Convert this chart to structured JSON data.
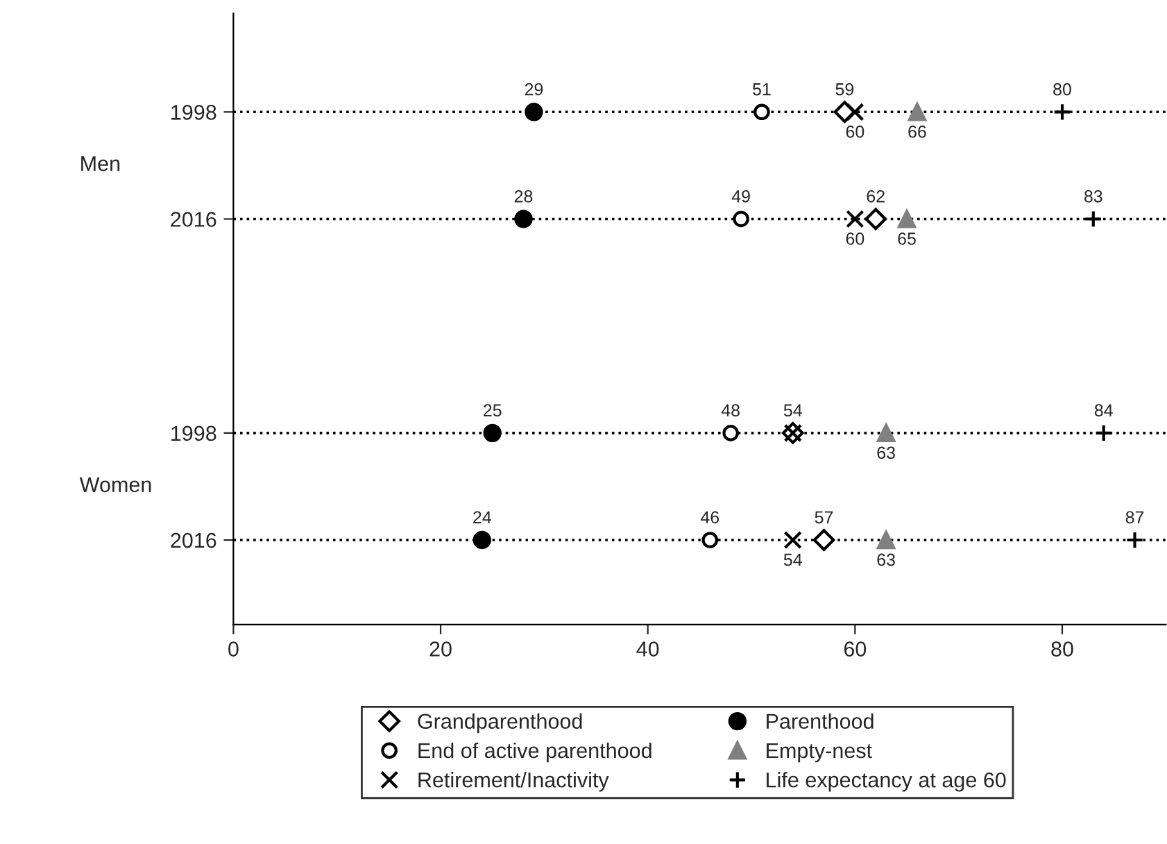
{
  "chart_data": {
    "type": "scatter",
    "categories": [
      "1998",
      "2016",
      null,
      "1998",
      "2016"
    ],
    "annotations": [
      "Men",
      "Women"
    ],
    "orientation": "horizontal",
    "xlim": [
      0,
      90
    ],
    "xticks": [
      0,
      20,
      40,
      60,
      80
    ],
    "grid": "y",
    "line_style": "dotted",
    "legend": "bottom",
    "series": [
      {
        "name": "Grandparenthood",
        "color": "#000000",
        "marker": "diamond_open",
        "values": [
          59,
          62,
          null,
          54,
          57
        ],
        "value_labels": [
          "59",
          "62",
          null,
          "54",
          "57"
        ]
      },
      {
        "name": "End of active parenthood",
        "color": "#000000",
        "marker": "circle_open",
        "values": [
          51,
          49,
          null,
          48,
          46
        ],
        "value_labels": [
          "51",
          "49",
          null,
          "48",
          "46"
        ]
      },
      {
        "name": "Retirement/Inactivity",
        "color": "#000000",
        "marker": "cross",
        "values": [
          60,
          60,
          null,
          54,
          54
        ],
        "value_labels": [
          "60",
          "60",
          null,
          null,
          "54"
        ]
      },
      {
        "name": "Parenthood",
        "color": "#000000",
        "marker": "circle",
        "values": [
          29,
          28,
          null,
          25,
          24
        ],
        "value_labels": [
          "29",
          "28",
          null,
          "25",
          "24"
        ]
      },
      {
        "name": "Empty-nest",
        "color": "#808080",
        "marker": "triangle",
        "values": [
          66,
          65,
          null,
          63,
          63
        ],
        "value_labels": [
          "66",
          "65",
          null,
          "63",
          "63"
        ]
      },
      {
        "name": "Life expectancy at age 60",
        "color": "#000000",
        "marker": "plus",
        "values": [
          80,
          83,
          null,
          84,
          87
        ],
        "value_labels": [
          "80",
          "83",
          null,
          "84",
          "87"
        ]
      }
    ]
  }
}
